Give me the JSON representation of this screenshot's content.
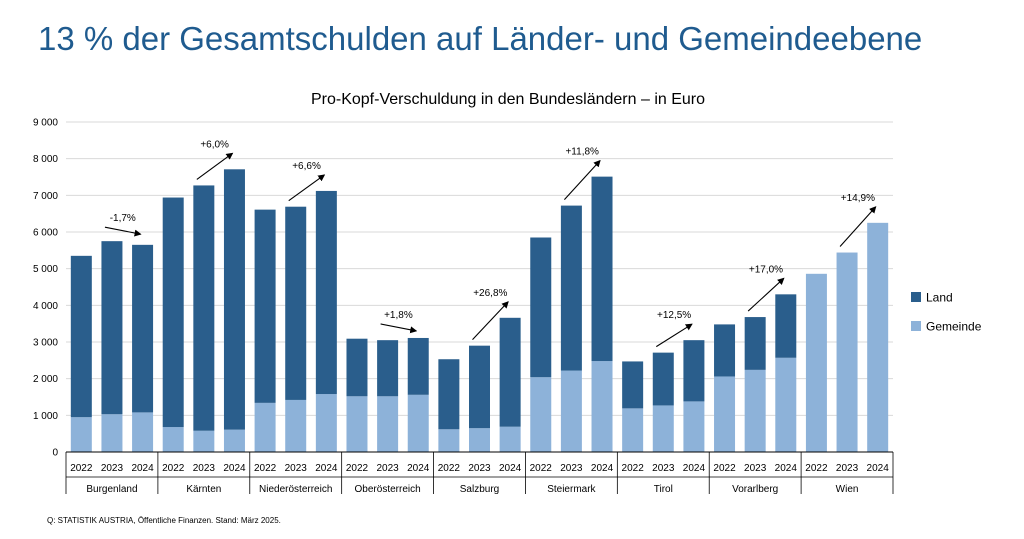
{
  "page": {
    "headline": "13 % der Gesamtschulden auf Länder- und Gemeindeebene",
    "source": "Q: STATISTIK AUSTRIA, Öffentliche Finanzen. Stand: März 2025."
  },
  "colors": {
    "headline": "#1f5b8f",
    "land": "#2a5e8c",
    "gemeinde": "#8db2d9",
    "grid": "#d9d9d9",
    "axis": "#000000"
  },
  "chart_data": {
    "type": "bar",
    "stacked": true,
    "title": "Pro-Kopf-Verschuldung in den Bundesländern – in Euro",
    "xlabel": "",
    "ylabel": "",
    "ylim": [
      0,
      9000
    ],
    "yticks": [
      0,
      1000,
      2000,
      3000,
      4000,
      5000,
      6000,
      7000,
      8000,
      9000
    ],
    "ytick_labels": [
      "0",
      "1 000",
      "2 000",
      "3 000",
      "4 000",
      "5 000",
      "6 000",
      "7 000",
      "8 000",
      "9 000"
    ],
    "grid": true,
    "legend_position": "right",
    "groups": [
      {
        "name": "Burgenland",
        "years": [
          "2022",
          "2023",
          "2024"
        ],
        "gemeinde": [
          950,
          1030,
          1080
        ],
        "land": [
          4400,
          4720,
          4570
        ],
        "change": "-1,7%",
        "trend": "flat"
      },
      {
        "name": "Kärnten",
        "years": [
          "2022",
          "2023",
          "2024"
        ],
        "gemeinde": [
          680,
          580,
          610
        ],
        "land": [
          6260,
          6690,
          7100
        ],
        "change": "+6,0%",
        "trend": "up"
      },
      {
        "name": "Niederösterreich",
        "years": [
          "2022",
          "2023",
          "2024"
        ],
        "gemeinde": [
          1340,
          1420,
          1580
        ],
        "land": [
          5270,
          5270,
          5540
        ],
        "change": "+6,6%",
        "trend": "up"
      },
      {
        "name": "Oberösterreich",
        "years": [
          "2022",
          "2023",
          "2024"
        ],
        "gemeinde": [
          1520,
          1520,
          1560
        ],
        "land": [
          1570,
          1530,
          1550
        ],
        "change": "+1,8%",
        "trend": "flat"
      },
      {
        "name": "Salzburg",
        "years": [
          "2022",
          "2023",
          "2024"
        ],
        "gemeinde": [
          620,
          650,
          690
        ],
        "land": [
          1910,
          2250,
          2970
        ],
        "change": "+26,8%",
        "trend": "up"
      },
      {
        "name": "Steiermark",
        "years": [
          "2022",
          "2023",
          "2024"
        ],
        "gemeinde": [
          2040,
          2220,
          2480
        ],
        "land": [
          3810,
          4500,
          5030
        ],
        "change": "+11,8%",
        "trend": "up"
      },
      {
        "name": "Tirol",
        "years": [
          "2022",
          "2023",
          "2024"
        ],
        "gemeinde": [
          1190,
          1270,
          1380
        ],
        "land": [
          1280,
          1440,
          1670
        ],
        "change": "+12,5%",
        "trend": "up"
      },
      {
        "name": "Vorarlberg",
        "years": [
          "2022",
          "2023",
          "2024"
        ],
        "gemeinde": [
          2060,
          2240,
          2570
        ],
        "land": [
          1420,
          1440,
          1730
        ],
        "change": "+17,0%",
        "trend": "up"
      },
      {
        "name": "Wien",
        "years": [
          "2022",
          "2023",
          "2024"
        ],
        "gemeinde": [
          4860,
          5440,
          6250
        ],
        "land": [
          0,
          0,
          0
        ],
        "change": "+14,9%",
        "trend": "up"
      }
    ],
    "series": [
      {
        "name": "Land",
        "key": "land"
      },
      {
        "name": "Gemeinde",
        "key": "gemeinde"
      }
    ]
  }
}
